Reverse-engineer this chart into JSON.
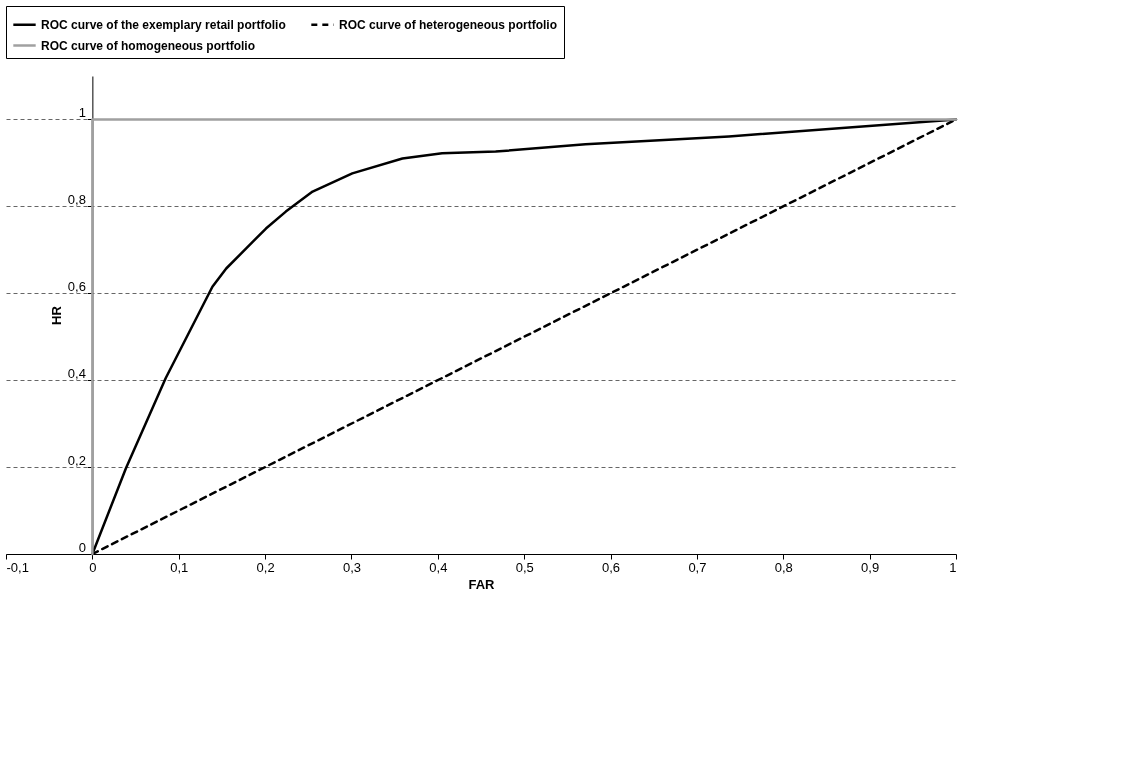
{
  "chart_data": {
    "type": "line",
    "xlabel": "FAR",
    "ylabel": "HR",
    "legend": "top",
    "grid": "y",
    "xlim": [
      -0.1,
      1
    ],
    "xticks": [
      {
        "value": -0.1,
        "label": "-0,1"
      },
      0,
      {
        "value": 0.1,
        "label": "0,1"
      },
      {
        "value": 0.2,
        "label": "0,2"
      },
      {
        "value": 0.3,
        "label": "0,3"
      },
      {
        "value": 0.4,
        "label": "0,4"
      },
      {
        "value": 0.5,
        "label": "0,5"
      },
      {
        "value": 0.6,
        "label": "0,6"
      },
      {
        "value": 0.7,
        "label": "0,7"
      },
      {
        "value": 0.8,
        "label": "0,8"
      },
      {
        "value": 0.9,
        "label": "0,9"
      },
      1
    ],
    "ylim": [
      0,
      1.1
    ],
    "yticks": [
      0,
      {
        "value": 0.2,
        "label": "0,2"
      },
      {
        "value": 0.4,
        "label": "0,4"
      },
      {
        "value": 0.6,
        "label": "0,6"
      },
      {
        "value": 0.8,
        "label": "0,8"
      },
      1
    ],
    "series": [
      {
        "name": "ROC curve of the exemplary retail portfolio",
        "color": "#000000",
        "line_style": "solid",
        "x": [
          0,
          0.039,
          0.085,
          0.139,
          0.155,
          0.201,
          0.224,
          0.255,
          0.301,
          0.359,
          0.405,
          0.467,
          0.571,
          0.737,
          1
        ],
        "values": [
          0,
          0.198,
          0.405,
          0.615,
          0.657,
          0.749,
          0.788,
          0.834,
          0.876,
          0.91,
          0.922,
          0.926,
          0.943,
          0.961,
          1
        ]
      },
      {
        "name": "ROC curve of heterogeneous portfolio",
        "color": "#000000",
        "line_style": "dashed",
        "x": [
          0,
          1
        ],
        "values": [
          0,
          1
        ]
      },
      {
        "name": "ROC curve of homogeneous portfolio",
        "color": "#a0a0a0",
        "line_style": "solid",
        "x": [
          0,
          0,
          1
        ],
        "values": [
          0,
          1,
          1
        ]
      }
    ]
  }
}
